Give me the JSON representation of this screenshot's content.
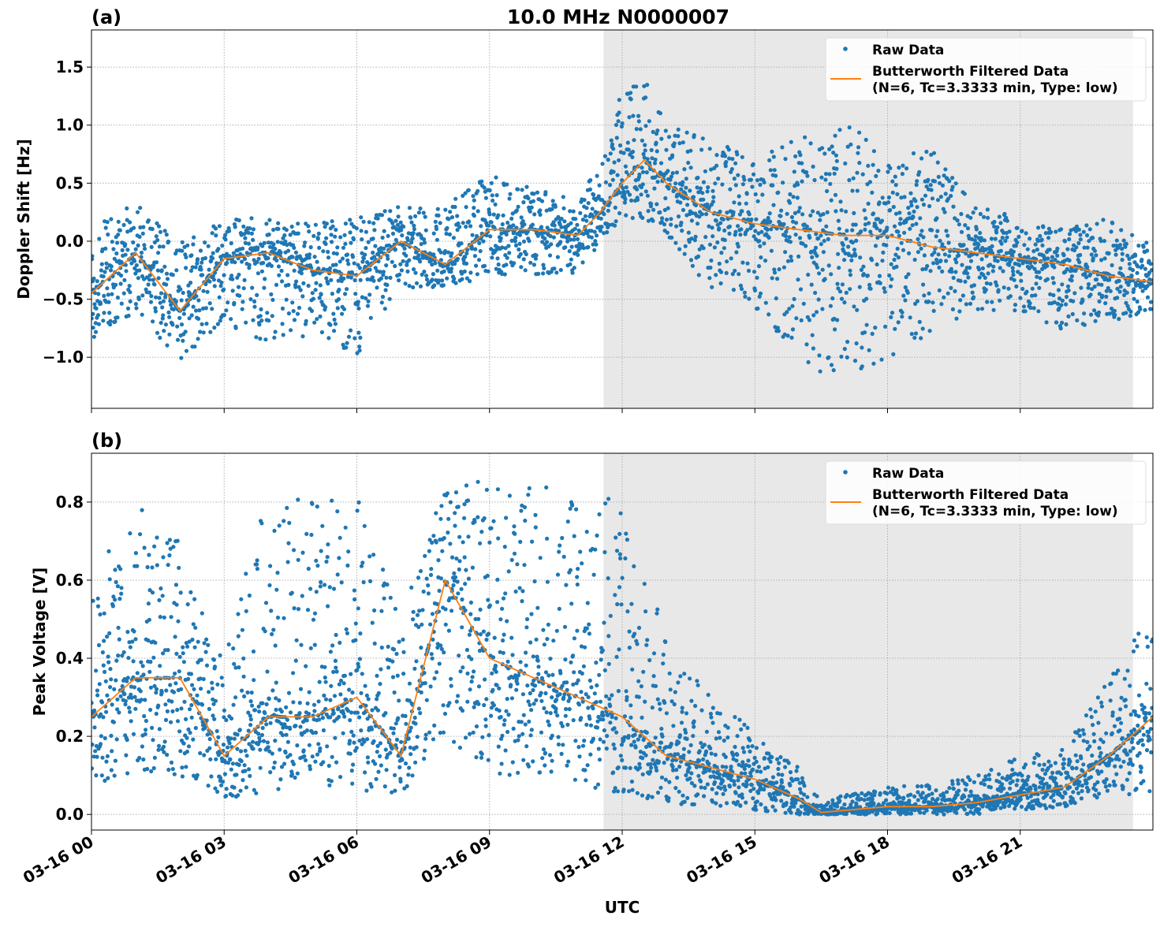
{
  "title": "10.0 MHz N0000007",
  "xlabel": "UTC",
  "x_tick_labels": [
    "03-16 00",
    "03-16 03",
    "03-16 06",
    "03-16 09",
    "03-16 12",
    "03-16 15",
    "03-16 18",
    "03-16 21"
  ],
  "legend": {
    "raw": "Raw Data",
    "filtered_line1": "Butterworth Filtered Data",
    "filtered_line2": "(N=6, Tc=3.3333 min, Type: low)"
  },
  "colors": {
    "raw": "#1f77b4",
    "filtered": "#ff7f0e",
    "shade": "#e8e8e8"
  },
  "chart_data": [
    {
      "type": "scatter+line",
      "panel_label": "(a)",
      "ylabel": "Doppler Shift [Hz]",
      "xlim_hours_utc": [
        0,
        24
      ],
      "ylim": [
        -1.44,
        1.82
      ],
      "y_ticks": [
        1.5,
        1.0,
        0.5,
        0.0,
        -0.5,
        -1.0
      ],
      "y_tick_labels": [
        "1.5",
        "1.0",
        "0.5",
        "0.0",
        "−0.5",
        "−1.0"
      ],
      "shaded_interval_hours_utc": [
        11.58,
        23.55
      ],
      "grid": true,
      "legend_position": "top-right",
      "x_hours_utc": [
        0,
        1,
        2,
        3,
        4,
        5,
        6,
        7,
        8,
        9,
        10,
        11,
        11.5,
        12,
        12.5,
        13,
        14,
        15,
        16,
        17,
        18,
        19,
        20,
        21,
        22,
        23,
        24
      ],
      "filtered": [
        -0.45,
        -0.1,
        -0.6,
        -0.15,
        -0.1,
        -0.25,
        -0.3,
        0.0,
        -0.2,
        0.1,
        0.1,
        0.05,
        0.25,
        0.5,
        0.7,
        0.5,
        0.25,
        0.15,
        0.1,
        0.05,
        0.05,
        -0.05,
        -0.1,
        -0.15,
        -0.2,
        -0.3,
        -0.35
      ],
      "raw_low": [
        -0.9,
        -0.6,
        -1.05,
        -0.7,
        -0.9,
        -0.8,
        -1.0,
        -0.4,
        -0.4,
        -0.3,
        -0.3,
        -0.3,
        0.0,
        0.2,
        0.2,
        0.0,
        -0.4,
        -0.6,
        -1.0,
        -1.3,
        -1.0,
        -0.8,
        -0.6,
        -0.6,
        -0.8,
        -0.7,
        -0.6
      ],
      "raw_high": [
        0.1,
        0.35,
        0.0,
        0.2,
        0.2,
        0.15,
        0.2,
        0.3,
        0.3,
        0.6,
        0.45,
        0.35,
        0.7,
        1.35,
        1.4,
        1.0,
        0.9,
        0.7,
        0.9,
        1.1,
        0.7,
        0.8,
        0.3,
        0.2,
        0.1,
        0.2,
        0.0
      ]
    },
    {
      "type": "scatter+line",
      "panel_label": "(b)",
      "ylabel": "Peak Voltage [V]",
      "xlim_hours_utc": [
        0,
        24
      ],
      "ylim": [
        -0.04,
        0.925
      ],
      "y_ticks": [
        0.8,
        0.6,
        0.4,
        0.2,
        0.0
      ],
      "y_tick_labels": [
        "0.8",
        "0.6",
        "0.4",
        "0.2",
        "0.0"
      ],
      "shaded_interval_hours_utc": [
        11.58,
        23.55
      ],
      "grid": true,
      "legend_position": "top-right",
      "x_hours_utc": [
        0,
        1,
        2,
        3,
        4,
        5,
        6,
        7,
        8,
        9,
        10,
        11,
        12,
        13,
        14,
        15,
        16,
        16.5,
        17,
        18,
        19,
        20,
        21,
        22,
        23,
        24
      ],
      "filtered": [
        0.25,
        0.35,
        0.35,
        0.15,
        0.25,
        0.25,
        0.3,
        0.15,
        0.6,
        0.4,
        0.35,
        0.3,
        0.25,
        0.15,
        0.12,
        0.09,
        0.04,
        0.005,
        0.01,
        0.02,
        0.02,
        0.03,
        0.05,
        0.07,
        0.15,
        0.25
      ],
      "raw_low": [
        0.08,
        0.1,
        0.1,
        0.04,
        0.05,
        0.06,
        0.06,
        0.05,
        0.2,
        0.1,
        0.1,
        0.08,
        0.05,
        0.03,
        0.02,
        0.01,
        0.0,
        0.0,
        0.0,
        0.0,
        0.0,
        0.0,
        0.01,
        0.02,
        0.05,
        0.05
      ],
      "raw_high": [
        0.6,
        0.8,
        0.7,
        0.4,
        0.88,
        0.8,
        0.86,
        0.5,
        0.87,
        0.86,
        0.86,
        0.8,
        0.83,
        0.45,
        0.3,
        0.22,
        0.12,
        0.03,
        0.05,
        0.07,
        0.08,
        0.1,
        0.15,
        0.17,
        0.35,
        0.53
      ]
    }
  ]
}
